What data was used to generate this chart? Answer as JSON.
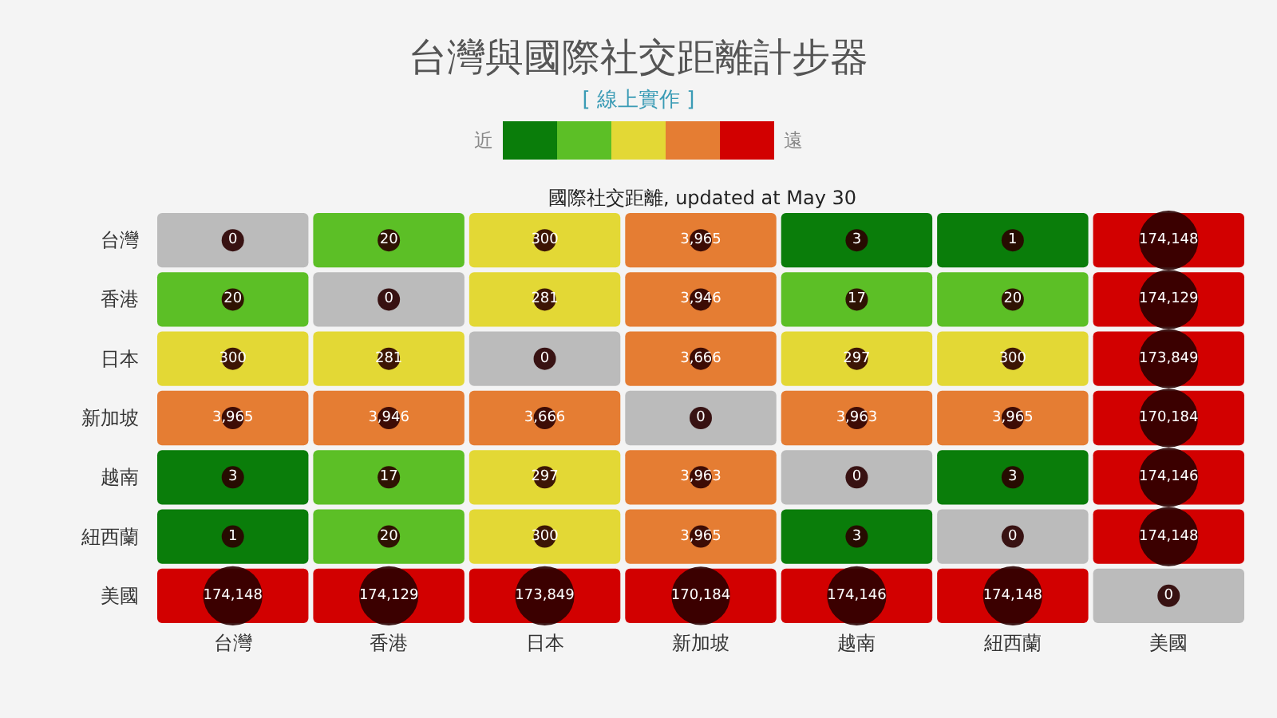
{
  "chart_data": {
    "type": "heatmap",
    "title": "台灣與國際社交距離計步器",
    "subtitle": "[ 線上實作 ]",
    "annotations": [
      "近",
      "遠",
      "國際社交距離, updated at May 30"
    ],
    "categories": [
      "台灣",
      "香港",
      "日本",
      "新加坡",
      "越南",
      "紐西蘭",
      "美國"
    ],
    "y_categories": [
      "台灣",
      "香港",
      "日本",
      "新加坡",
      "越南",
      "紐西蘭",
      "美國"
    ],
    "colors": [
      "#bbbbbb",
      "#0a7d0a",
      "#5cbf26",
      "#e3d835",
      "#e57d33",
      "#d20000"
    ],
    "cells": [
      [
        0,
        20,
        300,
        3965,
        3,
        1,
        174148
      ],
      [
        20,
        0,
        281,
        3946,
        17,
        20,
        174129
      ],
      [
        300,
        281,
        0,
        3666,
        297,
        300,
        173849
      ],
      [
        3965,
        3946,
        3666,
        0,
        3963,
        3965,
        170184
      ],
      [
        3,
        17,
        297,
        3963,
        0,
        3,
        174146
      ],
      [
        1,
        20,
        300,
        3965,
        3,
        0,
        174148
      ],
      [
        174148,
        174129,
        173849,
        170184,
        174146,
        174148,
        0
      ]
    ],
    "cell_labels": [
      [
        "0",
        "20",
        "300",
        "3,965",
        "3",
        "1",
        "174,148"
      ],
      [
        "20",
        "0",
        "281",
        "3,946",
        "17",
        "20",
        "174,129"
      ],
      [
        "300",
        "281",
        "0",
        "3,666",
        "297",
        "300",
        "173,849"
      ],
      [
        "3,965",
        "3,946",
        "3,666",
        "0",
        "3,963",
        "3,965",
        "170,184"
      ],
      [
        "3",
        "17",
        "297",
        "3,963",
        "0",
        "3",
        "174,146"
      ],
      [
        "1",
        "20",
        "300",
        "3,965",
        "3",
        "0",
        "174,148"
      ],
      [
        "174,148",
        "174,129",
        "173,849",
        "170,184",
        "174,146",
        "174,148",
        "0"
      ]
    ]
  }
}
